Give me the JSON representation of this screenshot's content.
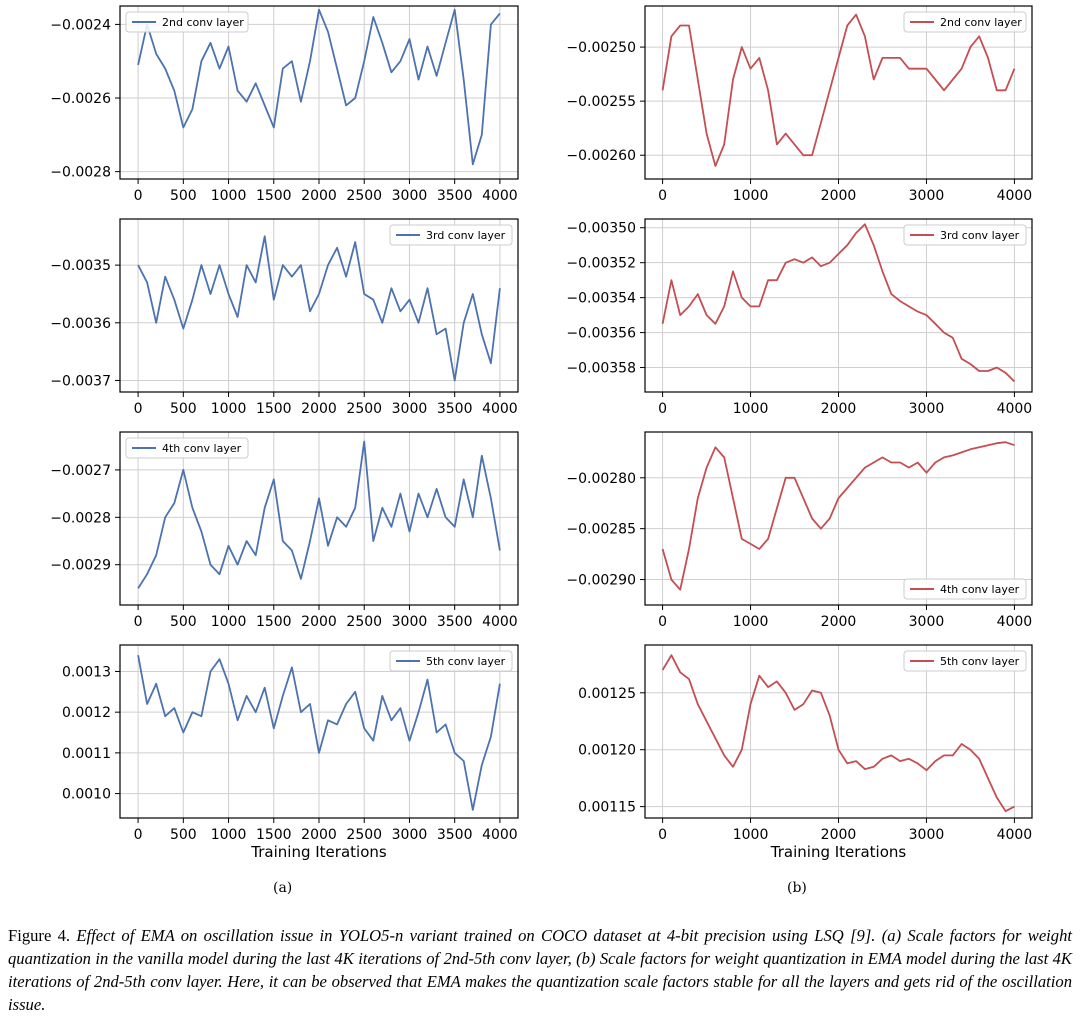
{
  "figure": {
    "sub_a": "(a)",
    "sub_b": "(b)",
    "caption": {
      "lead": "Figure 4. ",
      "body": "Effect of EMA on oscillation issue in YOLO5-n variant trained on COCO dataset at 4-bit precision using LSQ [9]. (a) Scale factors for weight quantization in the vanilla model during the last 4K iterations of 2nd-5th conv layer, (b) Scale factors for weight quantization in EMA model during the last 4K iterations of 2nd-5th conv layer. Here, it can be observed that EMA makes the quantization scale factors stable for all the layers and gets rid of the oscillation issue."
    }
  },
  "chart_data": [
    {
      "id": "a1",
      "type": "line",
      "color": "#4c72b0",
      "legend": "2nd conv layer",
      "legend_pos": "top-left",
      "xlabel": "",
      "xlim": [
        -200,
        4200
      ],
      "ylim": [
        -0.00282,
        -0.00235
      ],
      "xticks": [
        0,
        500,
        1000,
        1500,
        2000,
        2500,
        3000,
        3500,
        4000
      ],
      "xtick_labels": [
        "0",
        "500",
        "1000",
        "1500",
        "2000",
        "2500",
        "3000",
        "3500",
        "4000"
      ],
      "yticks": [
        -0.0024,
        -0.0026,
        -0.0028
      ],
      "ytick_labels": [
        "−0.0024",
        "−0.0026",
        "−0.0028"
      ],
      "x": [
        0,
        100,
        200,
        300,
        400,
        500,
        600,
        700,
        800,
        900,
        1000,
        1100,
        1200,
        1300,
        1400,
        1500,
        1600,
        1700,
        1800,
        1900,
        2000,
        2100,
        2200,
        2300,
        2400,
        2500,
        2600,
        2700,
        2800,
        2900,
        3000,
        3100,
        3200,
        3300,
        3400,
        3500,
        3600,
        3700,
        3800,
        3900,
        4000
      ],
      "y": [
        -0.00251,
        -0.0024,
        -0.00248,
        -0.00252,
        -0.00258,
        -0.00268,
        -0.00263,
        -0.0025,
        -0.00245,
        -0.00252,
        -0.00246,
        -0.00258,
        -0.00261,
        -0.00256,
        -0.00262,
        -0.00268,
        -0.00252,
        -0.0025,
        -0.00261,
        -0.0025,
        -0.00236,
        -0.00242,
        -0.00252,
        -0.00262,
        -0.0026,
        -0.0025,
        -0.00238,
        -0.00245,
        -0.00253,
        -0.0025,
        -0.00244,
        -0.00255,
        -0.00246,
        -0.00254,
        -0.00245,
        -0.00236,
        -0.00255,
        -0.00278,
        -0.0027,
        -0.0024,
        -0.00237
      ]
    },
    {
      "id": "b1",
      "type": "line",
      "color": "#c44e52",
      "legend": "2nd conv layer",
      "legend_pos": "top-right",
      "xlabel": "",
      "xlim": [
        -200,
        4200
      ],
      "ylim": [
        -0.002622,
        -0.002462
      ],
      "xticks": [
        0,
        1000,
        2000,
        3000,
        4000
      ],
      "xtick_labels": [
        "0",
        "1000",
        "2000",
        "3000",
        "4000"
      ],
      "yticks": [
        -0.0025,
        -0.00255,
        -0.0026
      ],
      "ytick_labels": [
        "−0.00250",
        "−0.00255",
        "−0.00260"
      ],
      "x": [
        0,
        100,
        200,
        300,
        400,
        500,
        600,
        700,
        800,
        900,
        1000,
        1100,
        1200,
        1300,
        1400,
        1500,
        1600,
        1700,
        1800,
        1900,
        2000,
        2100,
        2200,
        2300,
        2400,
        2500,
        2600,
        2700,
        2800,
        2900,
        3000,
        3100,
        3200,
        3300,
        3400,
        3500,
        3600,
        3700,
        3800,
        3900,
        4000
      ],
      "y": [
        -0.00254,
        -0.00249,
        -0.00248,
        -0.00248,
        -0.00253,
        -0.00258,
        -0.00261,
        -0.00259,
        -0.00253,
        -0.0025,
        -0.00252,
        -0.00251,
        -0.00254,
        -0.00259,
        -0.00258,
        -0.00259,
        -0.0026,
        -0.0026,
        -0.00257,
        -0.00254,
        -0.00251,
        -0.00248,
        -0.00247,
        -0.00249,
        -0.00253,
        -0.00251,
        -0.00251,
        -0.00251,
        -0.00252,
        -0.00252,
        -0.00252,
        -0.00253,
        -0.00254,
        -0.00253,
        -0.00252,
        -0.0025,
        -0.00249,
        -0.00251,
        -0.00254,
        -0.00254,
        -0.00252
      ]
    },
    {
      "id": "a2",
      "type": "line",
      "color": "#4c72b0",
      "legend": "3rd conv layer",
      "legend_pos": "top-right",
      "xlabel": "",
      "xlim": [
        -200,
        4200
      ],
      "ylim": [
        -0.00372,
        -0.00342
      ],
      "xticks": [
        0,
        500,
        1000,
        1500,
        2000,
        2500,
        3000,
        3500,
        4000
      ],
      "xtick_labels": [
        "0",
        "500",
        "1000",
        "1500",
        "2000",
        "2500",
        "3000",
        "3500",
        "4000"
      ],
      "yticks": [
        -0.0035,
        -0.0036,
        -0.0037
      ],
      "ytick_labels": [
        "−0.0035",
        "−0.0036",
        "−0.0037"
      ],
      "x": [
        0,
        100,
        200,
        300,
        400,
        500,
        600,
        700,
        800,
        900,
        1000,
        1100,
        1200,
        1300,
        1400,
        1500,
        1600,
        1700,
        1800,
        1900,
        2000,
        2100,
        2200,
        2300,
        2400,
        2500,
        2600,
        2700,
        2800,
        2900,
        3000,
        3100,
        3200,
        3300,
        3400,
        3500,
        3600,
        3700,
        3800,
        3900,
        4000
      ],
      "y": [
        -0.0035,
        -0.00353,
        -0.0036,
        -0.00352,
        -0.00356,
        -0.00361,
        -0.00356,
        -0.0035,
        -0.00355,
        -0.0035,
        -0.00355,
        -0.00359,
        -0.0035,
        -0.00353,
        -0.00345,
        -0.00356,
        -0.0035,
        -0.00352,
        -0.0035,
        -0.00358,
        -0.00355,
        -0.0035,
        -0.00347,
        -0.00352,
        -0.00346,
        -0.00355,
        -0.00356,
        -0.0036,
        -0.00354,
        -0.00358,
        -0.00356,
        -0.0036,
        -0.00354,
        -0.00362,
        -0.00361,
        -0.0037,
        -0.0036,
        -0.00355,
        -0.00362,
        -0.00367,
        -0.00354
      ]
    },
    {
      "id": "b2",
      "type": "line",
      "color": "#c44e52",
      "legend": "3rd conv layer",
      "legend_pos": "top-right",
      "xlabel": "",
      "xlim": [
        -200,
        4200
      ],
      "ylim": [
        -0.003594,
        -0.003495
      ],
      "xticks": [
        0,
        1000,
        2000,
        3000,
        4000
      ],
      "xtick_labels": [
        "0",
        "1000",
        "2000",
        "3000",
        "4000"
      ],
      "yticks": [
        -0.0035,
        -0.00352,
        -0.00354,
        -0.00356,
        -0.00358
      ],
      "ytick_labels": [
        "−0.00350",
        "−0.00352",
        "−0.00354",
        "−0.00356",
        "−0.00358"
      ],
      "x": [
        0,
        100,
        200,
        300,
        400,
        500,
        600,
        700,
        800,
        900,
        1000,
        1100,
        1200,
        1300,
        1400,
        1500,
        1600,
        1700,
        1800,
        1900,
        2000,
        2100,
        2200,
        2300,
        2400,
        2500,
        2600,
        2700,
        2800,
        2900,
        3000,
        3100,
        3200,
        3300,
        3400,
        3500,
        3600,
        3700,
        3800,
        3900,
        4000
      ],
      "y": [
        -0.003555,
        -0.00353,
        -0.00355,
        -0.003545,
        -0.003538,
        -0.00355,
        -0.003555,
        -0.003545,
        -0.003525,
        -0.00354,
        -0.003545,
        -0.003545,
        -0.00353,
        -0.00353,
        -0.00352,
        -0.003518,
        -0.00352,
        -0.003517,
        -0.003522,
        -0.00352,
        -0.003515,
        -0.00351,
        -0.003503,
        -0.003498,
        -0.00351,
        -0.003525,
        -0.003538,
        -0.003542,
        -0.003545,
        -0.003548,
        -0.00355,
        -0.003555,
        -0.00356,
        -0.003563,
        -0.003575,
        -0.003578,
        -0.003582,
        -0.003582,
        -0.00358,
        -0.003583,
        -0.003588
      ]
    },
    {
      "id": "a3",
      "type": "line",
      "color": "#4c72b0",
      "legend": "4th conv layer",
      "legend_pos": "top-left",
      "xlabel": "",
      "xlim": [
        -200,
        4200
      ],
      "ylim": [
        -0.002985,
        -0.00262
      ],
      "xticks": [
        0,
        500,
        1000,
        1500,
        2000,
        2500,
        3000,
        3500,
        4000
      ],
      "xtick_labels": [
        "0",
        "500",
        "1000",
        "1500",
        "2000",
        "2500",
        "3000",
        "3500",
        "4000"
      ],
      "yticks": [
        -0.0027,
        -0.0028,
        -0.0029
      ],
      "ytick_labels": [
        "−0.0027",
        "−0.0028",
        "−0.0029"
      ],
      "x": [
        0,
        100,
        200,
        300,
        400,
        500,
        600,
        700,
        800,
        900,
        1000,
        1100,
        1200,
        1300,
        1400,
        1500,
        1600,
        1700,
        1800,
        1900,
        2000,
        2100,
        2200,
        2300,
        2400,
        2500,
        2600,
        2700,
        2800,
        2900,
        3000,
        3100,
        3200,
        3300,
        3400,
        3500,
        3600,
        3700,
        3800,
        3900,
        4000
      ],
      "y": [
        -0.00295,
        -0.00292,
        -0.00288,
        -0.0028,
        -0.00277,
        -0.0027,
        -0.00278,
        -0.00283,
        -0.0029,
        -0.00292,
        -0.00286,
        -0.0029,
        -0.00285,
        -0.00288,
        -0.00278,
        -0.00272,
        -0.00285,
        -0.00287,
        -0.00293,
        -0.00285,
        -0.00276,
        -0.00286,
        -0.0028,
        -0.00282,
        -0.00278,
        -0.00264,
        -0.00285,
        -0.00278,
        -0.00282,
        -0.00275,
        -0.00283,
        -0.00275,
        -0.0028,
        -0.00274,
        -0.0028,
        -0.00282,
        -0.00272,
        -0.0028,
        -0.00267,
        -0.00276,
        -0.00287
      ]
    },
    {
      "id": "b3",
      "type": "line",
      "color": "#c44e52",
      "legend": "4th conv layer",
      "legend_pos": "bottom-right",
      "xlabel": "",
      "xlim": [
        -200,
        4200
      ],
      "ylim": [
        -0.002925,
        -0.002755
      ],
      "xticks": [
        0,
        1000,
        2000,
        3000,
        4000
      ],
      "xtick_labels": [
        "0",
        "1000",
        "2000",
        "3000",
        "4000"
      ],
      "yticks": [
        -0.0028,
        -0.00285,
        -0.0029
      ],
      "ytick_labels": [
        "−0.00280",
        "−0.00285",
        "−0.00290"
      ],
      "x": [
        0,
        100,
        200,
        300,
        400,
        500,
        600,
        700,
        800,
        900,
        1000,
        1100,
        1200,
        1300,
        1400,
        1500,
        1600,
        1700,
        1800,
        1900,
        2000,
        2100,
        2200,
        2300,
        2400,
        2500,
        2600,
        2700,
        2800,
        2900,
        3000,
        3100,
        3200,
        3300,
        3400,
        3500,
        3600,
        3700,
        3800,
        3900,
        4000
      ],
      "y": [
        -0.00287,
        -0.0029,
        -0.00291,
        -0.00287,
        -0.00282,
        -0.00279,
        -0.00277,
        -0.00278,
        -0.00282,
        -0.00286,
        -0.002865,
        -0.00287,
        -0.00286,
        -0.00283,
        -0.0028,
        -0.0028,
        -0.00282,
        -0.00284,
        -0.00285,
        -0.00284,
        -0.00282,
        -0.00281,
        -0.0028,
        -0.00279,
        -0.002785,
        -0.00278,
        -0.002785,
        -0.002785,
        -0.00279,
        -0.002785,
        -0.002795,
        -0.002785,
        -0.00278,
        -0.002778,
        -0.002775,
        -0.002772,
        -0.00277,
        -0.002768,
        -0.002766,
        -0.002765,
        -0.002768
      ]
    },
    {
      "id": "a4",
      "type": "line",
      "color": "#4c72b0",
      "legend": "5th conv layer",
      "legend_pos": "top-right",
      "xlabel": "Training Iterations",
      "xlim": [
        -200,
        4200
      ],
      "ylim": [
        0.00094,
        0.001365
      ],
      "xticks": [
        0,
        500,
        1000,
        1500,
        2000,
        2500,
        3000,
        3500,
        4000
      ],
      "xtick_labels": [
        "0",
        "500",
        "1000",
        "1500",
        "2000",
        "2500",
        "3000",
        "3500",
        "4000"
      ],
      "yticks": [
        0.0013,
        0.0012,
        0.0011,
        0.001
      ],
      "ytick_labels": [
        "0.0013",
        "0.0012",
        "0.0011",
        "0.0010"
      ],
      "x": [
        0,
        100,
        200,
        300,
        400,
        500,
        600,
        700,
        800,
        900,
        1000,
        1100,
        1200,
        1300,
        1400,
        1500,
        1600,
        1700,
        1800,
        1900,
        2000,
        2100,
        2200,
        2300,
        2400,
        2500,
        2600,
        2700,
        2800,
        2900,
        3000,
        3100,
        3200,
        3300,
        3400,
        3500,
        3600,
        3700,
        3800,
        3900,
        4000
      ],
      "y": [
        0.00134,
        0.00122,
        0.00127,
        0.00119,
        0.00121,
        0.00115,
        0.0012,
        0.00119,
        0.0013,
        0.00133,
        0.00127,
        0.00118,
        0.00124,
        0.0012,
        0.00126,
        0.00116,
        0.00124,
        0.00131,
        0.0012,
        0.00122,
        0.0011,
        0.00118,
        0.00117,
        0.00122,
        0.00125,
        0.00116,
        0.00113,
        0.00124,
        0.00118,
        0.00121,
        0.00113,
        0.0012,
        0.00128,
        0.00115,
        0.00117,
        0.0011,
        0.00108,
        0.00096,
        0.00107,
        0.00114,
        0.00127
      ]
    },
    {
      "id": "b4",
      "type": "line",
      "color": "#c44e52",
      "legend": "5th conv layer",
      "legend_pos": "top-right",
      "xlabel": "Training Iterations",
      "xlim": [
        -200,
        4200
      ],
      "ylim": [
        0.00114,
        0.001292
      ],
      "xticks": [
        0,
        1000,
        2000,
        3000,
        4000
      ],
      "xtick_labels": [
        "0",
        "1000",
        "2000",
        "3000",
        "4000"
      ],
      "yticks": [
        0.00125,
        0.0012,
        0.00115
      ],
      "ytick_labels": [
        "0.00125",
        "0.00120",
        "0.00115"
      ],
      "x": [
        0,
        100,
        200,
        300,
        400,
        500,
        600,
        700,
        800,
        900,
        1000,
        1100,
        1200,
        1300,
        1400,
        1500,
        1600,
        1700,
        1800,
        1900,
        2000,
        2100,
        2200,
        2300,
        2400,
        2500,
        2600,
        2700,
        2800,
        2900,
        3000,
        3100,
        3200,
        3300,
        3400,
        3500,
        3600,
        3700,
        3800,
        3900,
        4000
      ],
      "y": [
        0.00127,
        0.001283,
        0.001268,
        0.001262,
        0.00124,
        0.001225,
        0.00121,
        0.001195,
        0.001185,
        0.0012,
        0.00124,
        0.001265,
        0.001255,
        0.00126,
        0.00125,
        0.001235,
        0.00124,
        0.001252,
        0.00125,
        0.00123,
        0.0012,
        0.001188,
        0.00119,
        0.001183,
        0.001185,
        0.001192,
        0.001195,
        0.00119,
        0.001192,
        0.001188,
        0.001182,
        0.00119,
        0.001195,
        0.001195,
        0.001205,
        0.0012,
        0.001192,
        0.001175,
        0.001158,
        0.001146,
        0.00115
      ]
    }
  ]
}
